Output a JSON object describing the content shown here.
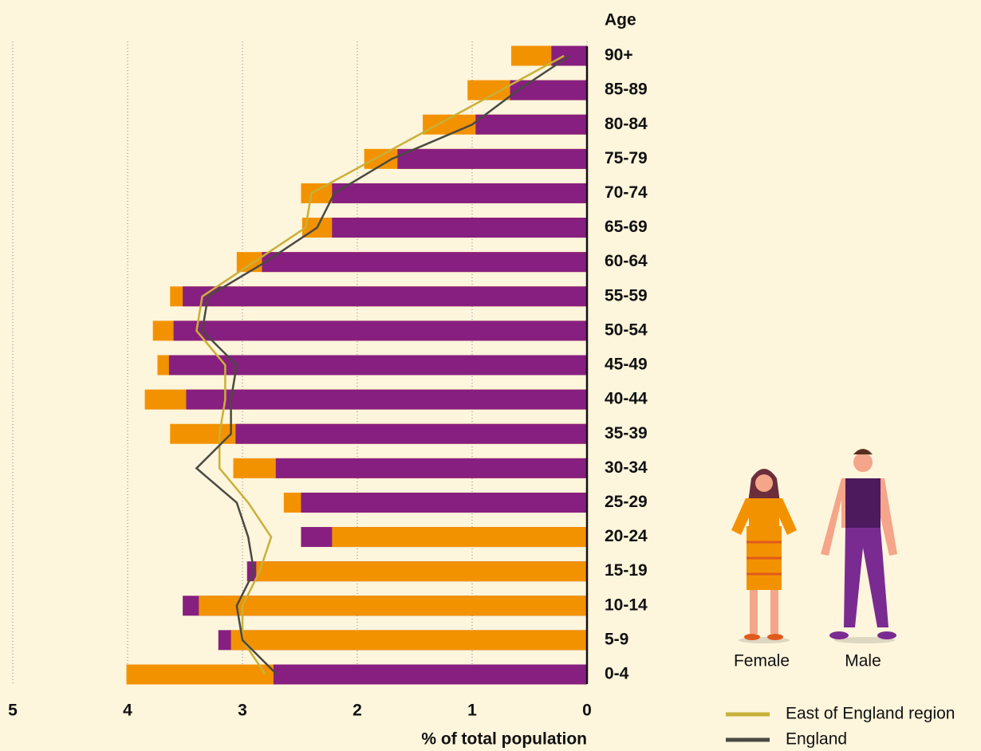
{
  "chart_data": {
    "type": "bar",
    "y_title": "Age",
    "x_label": "% of total population",
    "categories": [
      "0-4",
      "5-9",
      "10-14",
      "15-19",
      "20-24",
      "25-29",
      "30-34",
      "35-39",
      "40-44",
      "45-49",
      "50-54",
      "55-59",
      "60-64",
      "65-69",
      "70-74",
      "75-79",
      "80-84",
      "85-89",
      "90+"
    ],
    "series": [
      {
        "name": "Female",
        "color": "#f39200",
        "values": [
          4.01,
          3.1,
          3.38,
          2.88,
          2.22,
          2.64,
          3.08,
          3.63,
          3.85,
          3.74,
          3.78,
          3.63,
          3.05,
          2.48,
          2.49,
          1.94,
          1.43,
          1.04,
          0.66
        ]
      },
      {
        "name": "Male",
        "color": "#871f80",
        "values": [
          2.73,
          3.21,
          3.52,
          2.96,
          2.49,
          2.49,
          2.71,
          3.06,
          3.49,
          3.64,
          3.6,
          3.52,
          2.83,
          2.22,
          2.22,
          1.65,
          0.97,
          0.67,
          0.31
        ]
      }
    ],
    "lines": [
      {
        "name": "East of England region",
        "color": "#c9b037",
        "values": [
          2.8,
          3.0,
          3.0,
          2.85,
          2.75,
          2.95,
          3.2,
          3.2,
          3.15,
          3.15,
          3.4,
          3.35,
          2.9,
          2.45,
          2.4,
          1.85,
          1.3,
          0.75,
          0.2
        ]
      },
      {
        "name": "England",
        "color": "#4a4a42",
        "values": [
          2.7,
          3.0,
          3.05,
          2.9,
          2.95,
          3.05,
          3.4,
          3.1,
          3.1,
          3.05,
          3.35,
          3.3,
          2.8,
          2.35,
          2.2,
          1.7,
          1.0,
          0.6,
          0.15
        ]
      }
    ],
    "xlim": [
      5,
      0
    ],
    "xticks": [
      5,
      4,
      3,
      2,
      1,
      0
    ],
    "grid": true
  }
}
